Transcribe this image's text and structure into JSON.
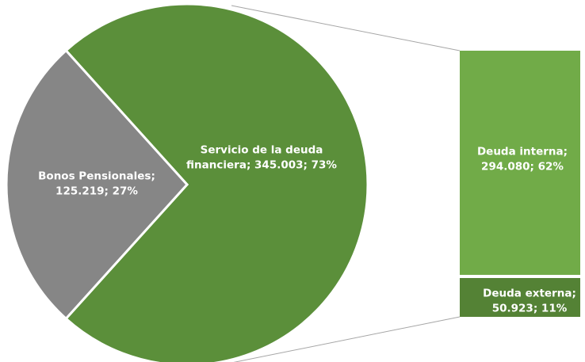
{
  "chart_data": {
    "type": "pie",
    "subtype": "pie-of-bar",
    "units": "",
    "slices": [
      {
        "name": "Servicio de la deuda financiera",
        "value": 345.003,
        "percent": "73%",
        "label_lines": [
          "Servicio de la deuda",
          "financiera; 345.003; 73%"
        ]
      },
      {
        "name": "Bonos Pensionales",
        "value": 125.219,
        "percent": "27%",
        "label_lines": [
          "Bonos Pensionales;",
          "125.219; 27%"
        ]
      }
    ],
    "breakdown": {
      "of": "Servicio de la deuda financiera",
      "segments": [
        {
          "name": "Deuda interna",
          "value": 294.08,
          "percent": "62%",
          "label_lines": [
            "Deuda interna;",
            "294.080; 62%"
          ]
        },
        {
          "name": "Deuda externa",
          "value": 50.923,
          "percent": "11%",
          "label_lines": [
            "Deuda externa;",
            "50.923; 11%"
          ]
        }
      ]
    },
    "legend": "none",
    "colors": {
      "servicio_deuda": "#5b8f3a",
      "bonos": "#868686",
      "deuda_interna": "#71ab48",
      "deuda_externa": "#548235",
      "connector": "#a6a6a6",
      "label_text": "#ffffff"
    }
  }
}
